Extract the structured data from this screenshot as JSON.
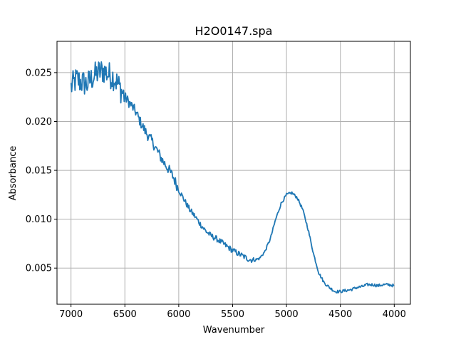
{
  "chart_data": {
    "type": "line",
    "title": "H2O0147.spa",
    "xlabel": "Wavenumber",
    "ylabel": "Absorbance",
    "x_inverted": true,
    "xlim": [
      7130,
      3850
    ],
    "ylim": [
      0.0013,
      0.0282
    ],
    "xticks": [
      7000,
      6500,
      6000,
      5500,
      5000,
      4500,
      4000
    ],
    "xtick_labels": [
      "7000",
      "6500",
      "6000",
      "5500",
      "5000",
      "4500",
      "4000"
    ],
    "yticks": [
      0.005,
      0.01,
      0.015,
      0.02,
      0.025
    ],
    "ytick_labels": [
      "0.005",
      "0.010",
      "0.015",
      "0.020",
      "0.025"
    ],
    "grid": true,
    "line_color": "#1f77b4",
    "series": [
      {
        "x": [
          7000,
          6950,
          6900,
          6850,
          6800,
          6750,
          6700,
          6650,
          6600,
          6550,
          6500,
          6450,
          6400,
          6350,
          6300,
          6250,
          6200,
          6150,
          6100,
          6050,
          6000,
          5950,
          5900,
          5850,
          5800,
          5750,
          5700,
          5650,
          5600,
          5550,
          5500,
          5450,
          5400,
          5350,
          5300,
          5250,
          5200,
          5150,
          5100,
          5050,
          5000,
          4950,
          4900,
          4850,
          4800,
          4750,
          4700,
          4650,
          4600,
          4550,
          4500,
          4450,
          4400,
          4350,
          4300,
          4250,
          4200,
          4150,
          4100,
          4050,
          4000
        ],
        "y": [
          0.0235,
          0.0243,
          0.024,
          0.0238,
          0.0245,
          0.025,
          0.0252,
          0.0248,
          0.0245,
          0.0235,
          0.0225,
          0.0218,
          0.021,
          0.0198,
          0.0188,
          0.018,
          0.017,
          0.016,
          0.0152,
          0.0143,
          0.013,
          0.012,
          0.011,
          0.0103,
          0.0095,
          0.0088,
          0.0083,
          0.008,
          0.0076,
          0.0072,
          0.0068,
          0.0065,
          0.0062,
          0.0059,
          0.0058,
          0.006,
          0.0067,
          0.008,
          0.01,
          0.0116,
          0.0125,
          0.0127,
          0.0122,
          0.011,
          0.009,
          0.0065,
          0.0045,
          0.0035,
          0.003,
          0.0026,
          0.0026,
          0.0027,
          0.0028,
          0.003,
          0.0031,
          0.0033,
          0.0033,
          0.0032,
          0.0033,
          0.0033,
          0.0032
        ]
      }
    ]
  }
}
